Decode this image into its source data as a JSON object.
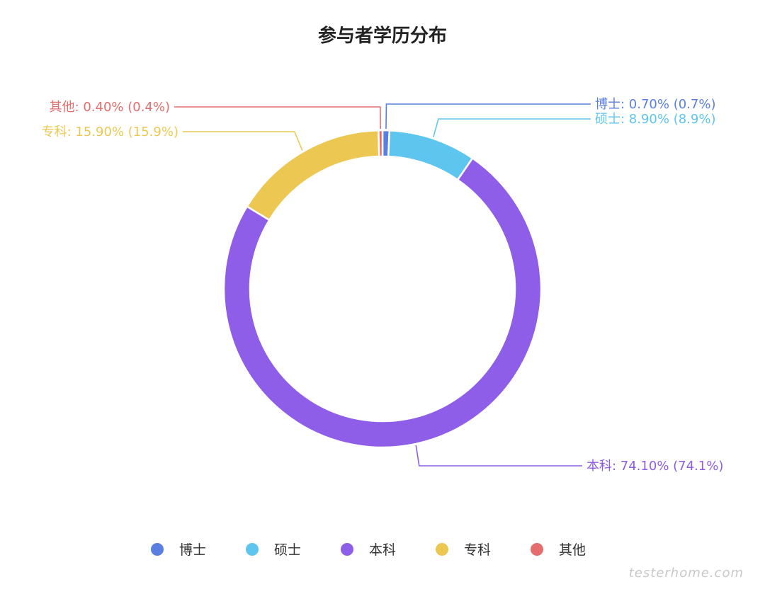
{
  "chart_data": {
    "type": "pie",
    "title": "参与者学历分布",
    "donut": true,
    "legend_position": "bottom",
    "slices": [
      {
        "name": "博士",
        "value": 0.7,
        "label": "博士: 0.70% (0.7%)",
        "color": "#5b7fe0"
      },
      {
        "name": "硕士",
        "value": 8.9,
        "label": "硕士: 8.90% (8.9%)",
        "color": "#5ec6ee"
      },
      {
        "name": "本科",
        "value": 74.1,
        "label": "本科: 74.10% (74.1%)",
        "color": "#8f5ee8"
      },
      {
        "name": "专科",
        "value": 15.9,
        "label": "专科: 15.90% (15.9%)",
        "color": "#ecc853"
      },
      {
        "name": "其他",
        "value": 0.4,
        "label": "其他: 0.40% (0.4%)",
        "color": "#e66d6d"
      }
    ]
  },
  "watermark": "testerhome.com"
}
